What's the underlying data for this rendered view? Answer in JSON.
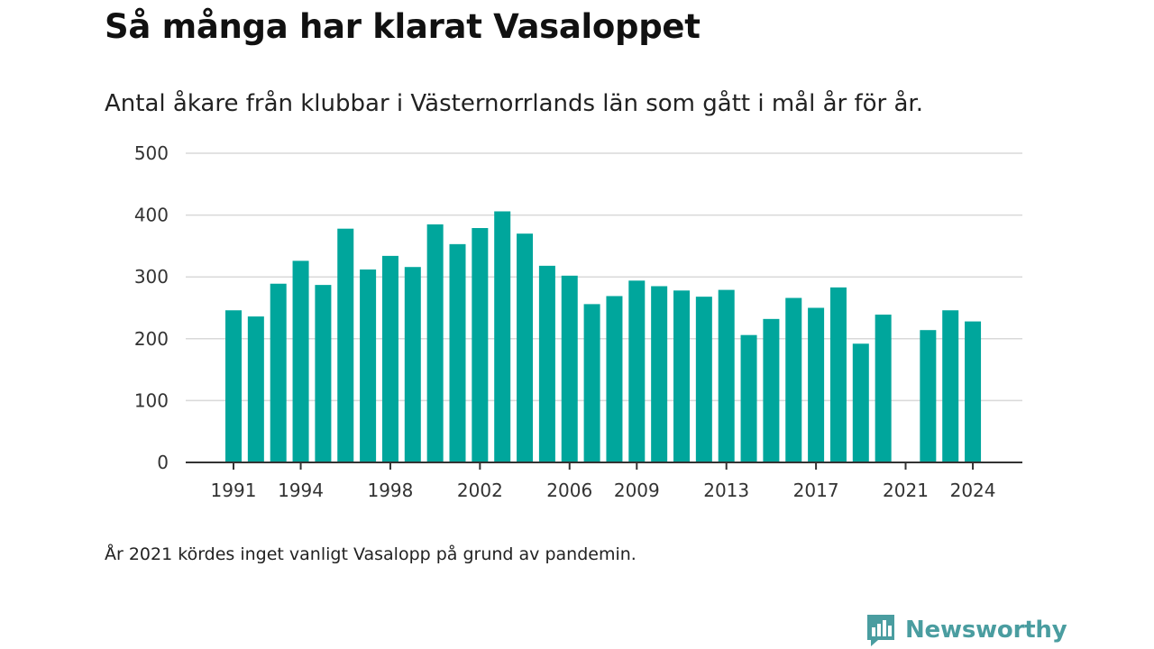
{
  "title": "Så många har klarat Vasaloppet",
  "subtitle": "Antal åkare från klubbar i Västernorrlands län som gått i mål år för år.",
  "footnote": "År 2021 kördes inget vanligt Vasalopp på grund av pandemin.",
  "brand": {
    "name": "Newsworthy",
    "icon": "newsworthy-logo-icon",
    "color": "#4a9da0"
  },
  "colors": {
    "bar": "#00a69c",
    "grid": "#d9d9d9",
    "axis": "#333333"
  },
  "chart_data": {
    "type": "bar",
    "title": "Så många har klarat Vasaloppet",
    "subtitle": "Antal åkare från klubbar i Västernorrlands län som gått i mål år för år.",
    "xlabel": "",
    "ylabel": "",
    "ylim": [
      0,
      500
    ],
    "yticks": [
      0,
      100,
      200,
      300,
      400,
      500
    ],
    "xtick_labels": [
      "1991",
      "1994",
      "1998",
      "2002",
      "2006",
      "2009",
      "2013",
      "2017",
      "2021",
      "2024"
    ],
    "grid": "horizontal",
    "categories": [
      1991,
      1992,
      1993,
      1994,
      1995,
      1996,
      1997,
      1998,
      1999,
      2000,
      2001,
      2002,
      2003,
      2004,
      2005,
      2006,
      2007,
      2008,
      2009,
      2010,
      2011,
      2012,
      2013,
      2014,
      2015,
      2016,
      2017,
      2018,
      2019,
      2020,
      2021,
      2022,
      2023,
      2024
    ],
    "values": [
      246,
      236,
      289,
      326,
      287,
      378,
      312,
      334,
      316,
      385,
      353,
      379,
      406,
      370,
      318,
      302,
      256,
      269,
      294,
      285,
      278,
      268,
      279,
      206,
      232,
      266,
      250,
      283,
      192,
      239,
      null,
      214,
      246,
      228
    ]
  }
}
